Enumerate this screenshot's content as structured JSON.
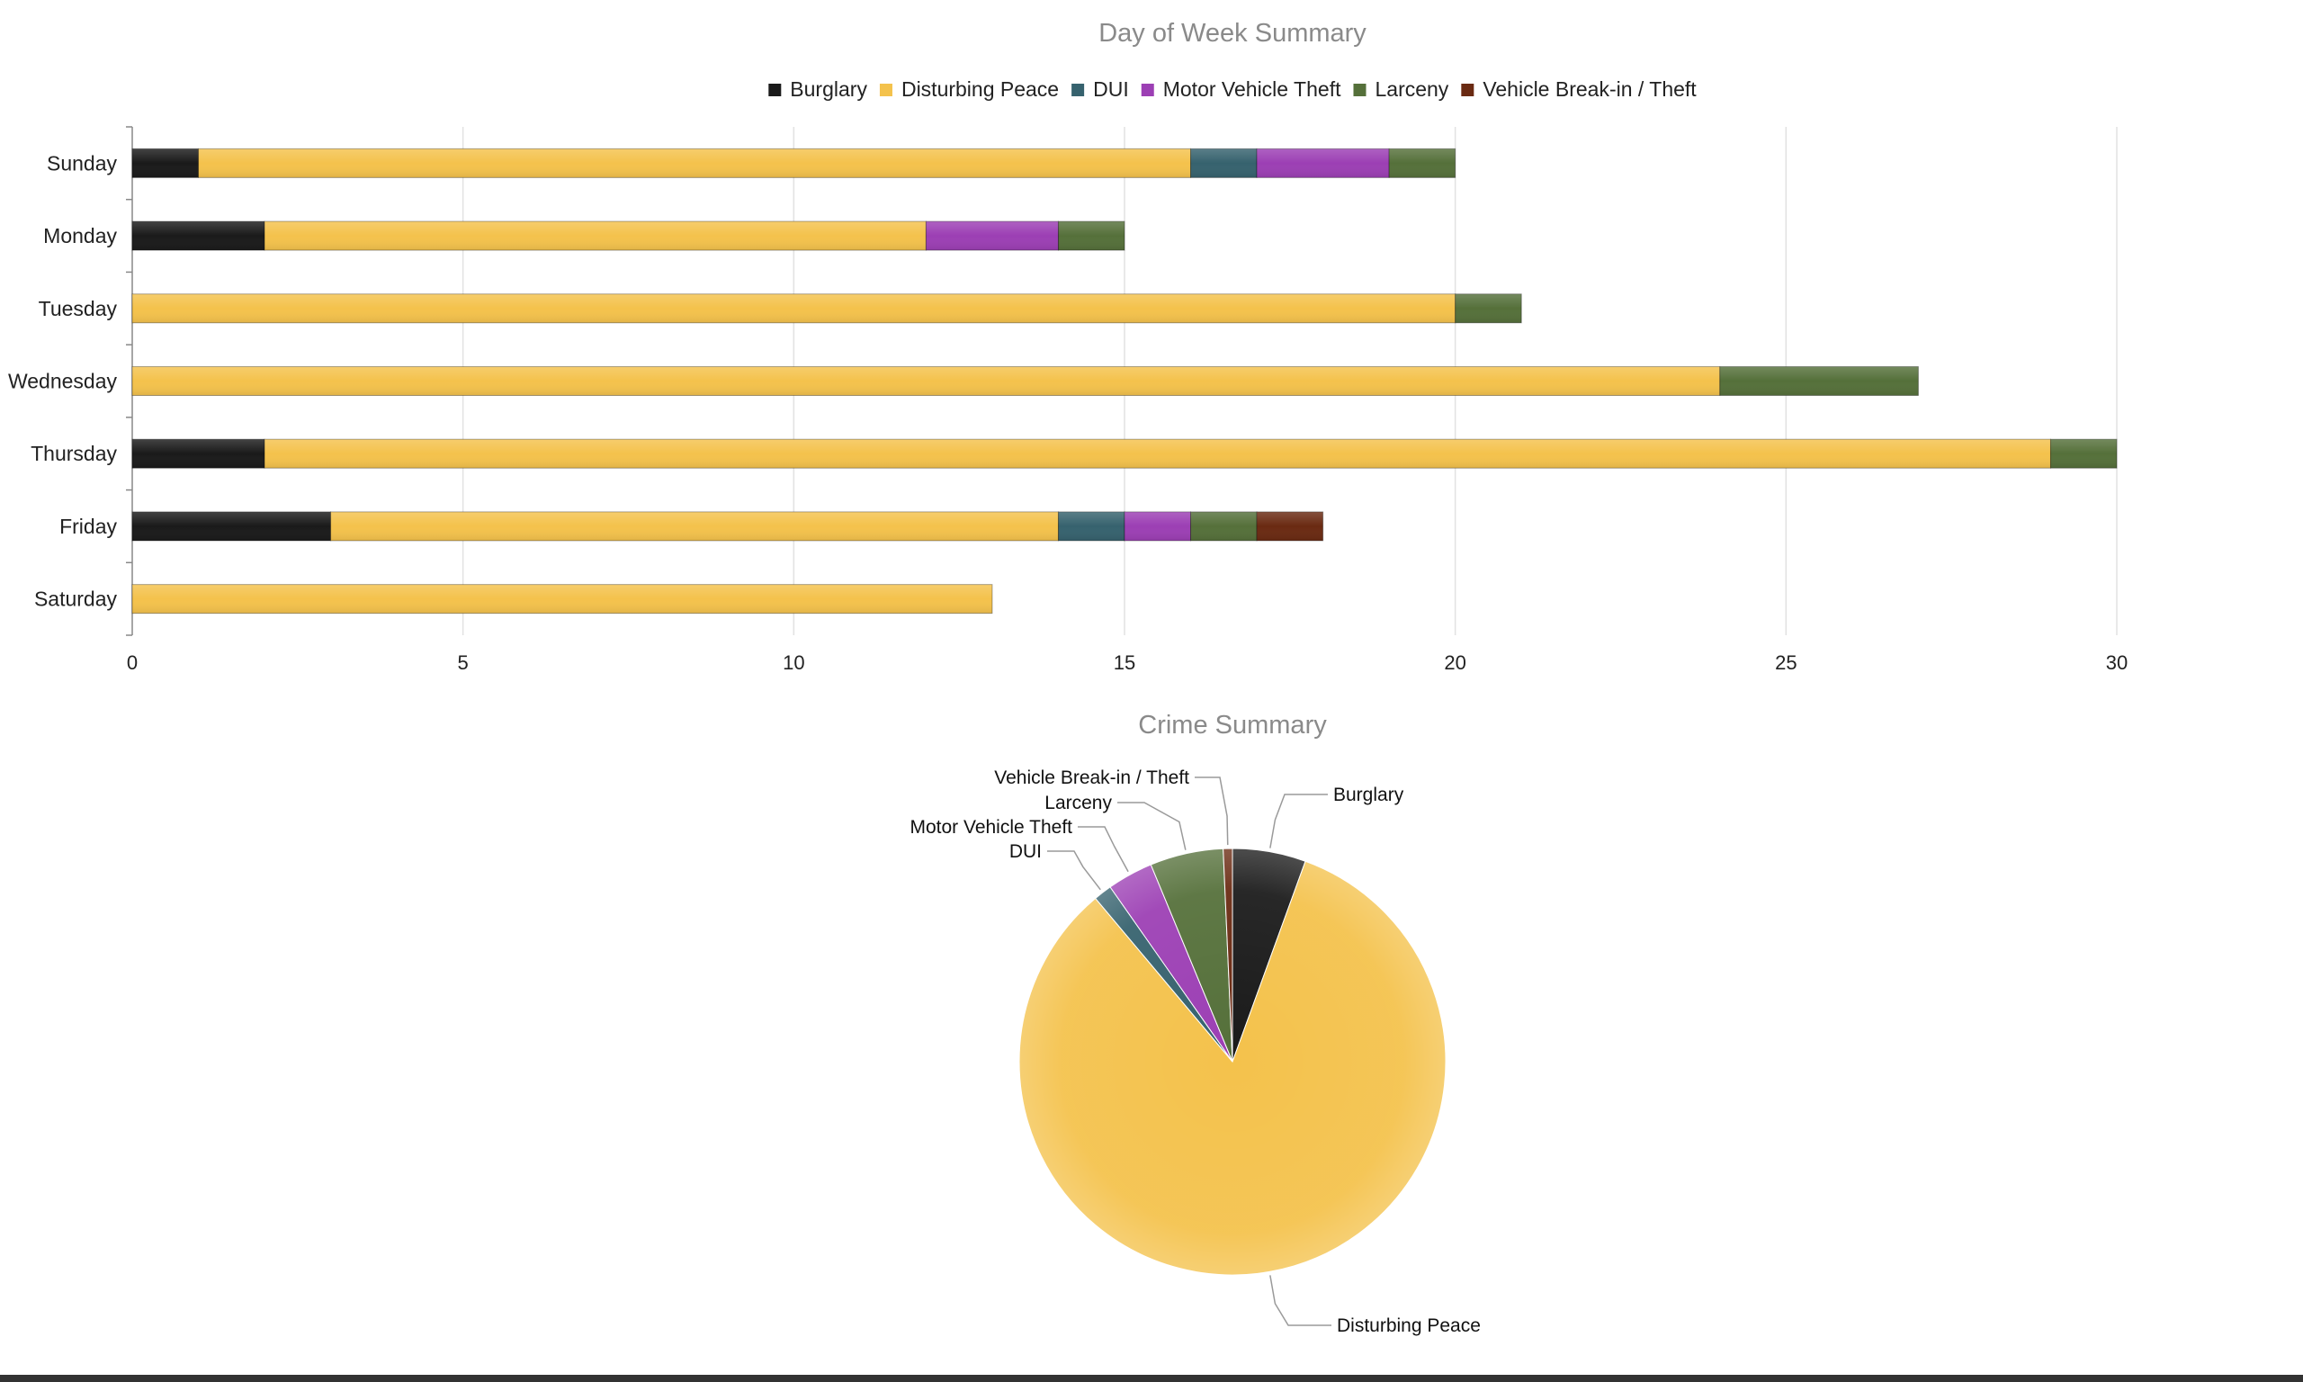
{
  "colors": {
    "Burglary": "#1a1a1a",
    "Disturbing Peace": "#f4c24c",
    "DUI": "#36626e",
    "Motor Vehicle Theft": "#9c3fb4",
    "Larceny": "#55703a",
    "Vehicle Break-in / Theft": "#6a2a12",
    "title": "#8a8a8a",
    "grid": "#e2e2e2"
  },
  "chart_data": [
    {
      "type": "bar",
      "orientation": "horizontal",
      "stacked": true,
      "title": "Day of Week Summary",
      "legend_position": "top-center",
      "grid": true,
      "categories": [
        "Sunday",
        "Monday",
        "Tuesday",
        "Wednesday",
        "Thursday",
        "Friday",
        "Saturday"
      ],
      "xlim": [
        0,
        30
      ],
      "xticks": [
        0,
        5,
        10,
        15,
        20,
        25,
        30
      ],
      "series": [
        {
          "name": "Burglary",
          "values": [
            1,
            2,
            0,
            0,
            2,
            3,
            0
          ]
        },
        {
          "name": "Disturbing Peace",
          "values": [
            15,
            10,
            20,
            24,
            27,
            11,
            13
          ]
        },
        {
          "name": "DUI",
          "values": [
            1,
            0,
            0,
            0,
            0,
            1,
            0
          ]
        },
        {
          "name": "Motor Vehicle Theft",
          "values": [
            2,
            2,
            0,
            0,
            0,
            1,
            0
          ]
        },
        {
          "name": "Larceny",
          "values": [
            1,
            1,
            1,
            3,
            1,
            1,
            0
          ]
        },
        {
          "name": "Vehicle Break-in / Theft",
          "values": [
            0,
            0,
            0,
            0,
            0,
            1,
            0
          ]
        }
      ]
    },
    {
      "type": "pie",
      "title": "Crime Summary",
      "slices": [
        {
          "name": "Burglary",
          "value": 8
        },
        {
          "name": "Disturbing Peace",
          "value": 120
        },
        {
          "name": "DUI",
          "value": 2
        },
        {
          "name": "Motor Vehicle Theft",
          "value": 5
        },
        {
          "name": "Larceny",
          "value": 8
        },
        {
          "name": "Vehicle Break-in / Theft",
          "value": 1
        }
      ],
      "slice_order_clockwise_from_top": [
        "Burglary",
        "Disturbing Peace",
        "DUI",
        "Motor Vehicle Theft",
        "Larceny",
        "Vehicle Break-in / Theft"
      ]
    }
  ]
}
